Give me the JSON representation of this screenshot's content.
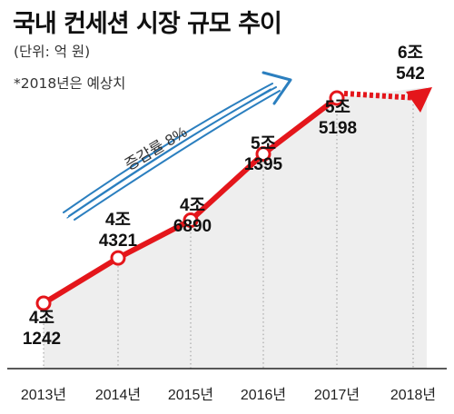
{
  "title": "국내 컨세션 시장 규모 추이",
  "unit_note": "(단위: 억 원)",
  "estimate_note": "*2018년은 예상치",
  "colors": {
    "line": "#e4161b",
    "growth_arrow": "#2b7fbf",
    "area": "#eeeeee",
    "grid": "#9a9a9a"
  },
  "chart_data": {
    "type": "line",
    "title": "국내 컨세션 시장 규모 추이",
    "unit": "억 원",
    "x": [
      "2013년",
      "2014년",
      "2015년",
      "2016년",
      "2017년",
      "2018년"
    ],
    "values": [
      41242,
      44321,
      46890,
      51395,
      55198,
      60542
    ],
    "data_labels": [
      [
        "4조",
        "1242"
      ],
      [
        "4조",
        "4321"
      ],
      [
        "4조",
        "6890"
      ],
      [
        "5조",
        "1395"
      ],
      [
        "5조",
        "5198"
      ],
      [
        "6조",
        "542"
      ]
    ],
    "estimated": [
      "2018년"
    ],
    "annotation": "증감률 8%",
    "grid": "vertical dotted"
  }
}
